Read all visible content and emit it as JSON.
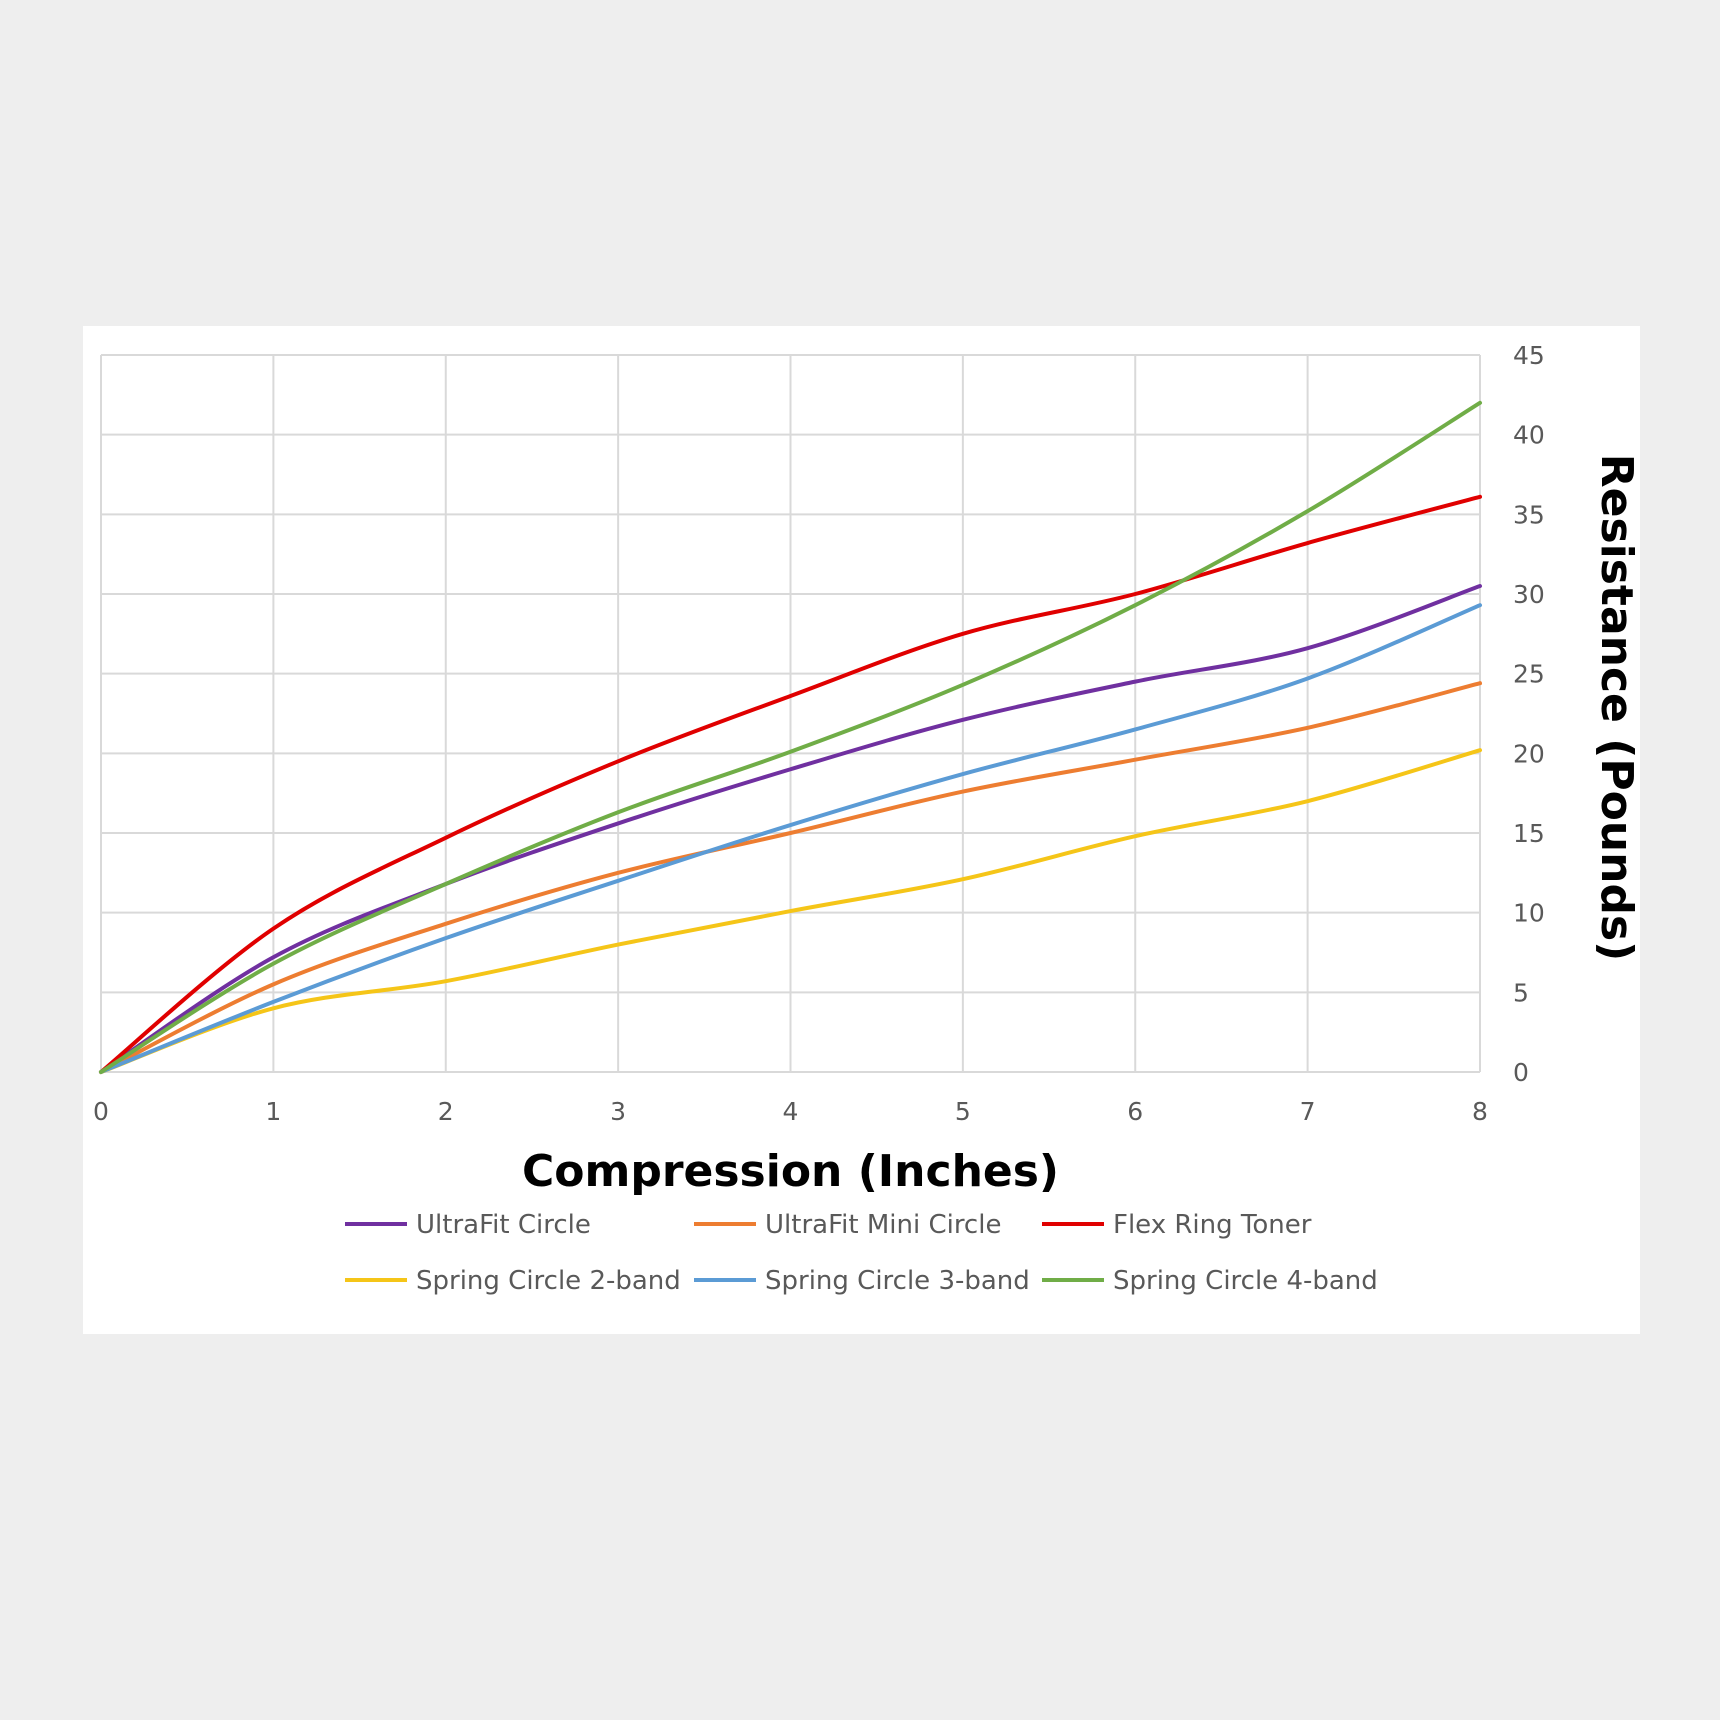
{
  "chart_data": {
    "type": "line",
    "title": "",
    "xlabel": "Compression (Inches)",
    "ylabel": "Resistance (Pounds)",
    "x": [
      0,
      1,
      2,
      3,
      4,
      5,
      6,
      7,
      8
    ],
    "xlim": [
      0,
      8
    ],
    "ylim": [
      0,
      45
    ],
    "x_ticks": [
      "0",
      "1",
      "2",
      "3",
      "4",
      "5",
      "6",
      "7",
      "8"
    ],
    "y_ticks": [
      "0",
      "5",
      "10",
      "15",
      "20",
      "25",
      "30",
      "35",
      "40",
      "45"
    ],
    "y_axis_side": "right",
    "grid": true,
    "legend_position": "bottom",
    "series": [
      {
        "name": "UltraFit Circle",
        "color": "#7030a0",
        "values": [
          0,
          7.2,
          11.8,
          15.6,
          19.0,
          22.1,
          24.5,
          26.6,
          30.5
        ]
      },
      {
        "name": "UltraFit Mini Circle",
        "color": "#ed7d31",
        "values": [
          0,
          5.5,
          9.3,
          12.5,
          15.0,
          17.6,
          19.6,
          21.6,
          24.4
        ]
      },
      {
        "name": "Flex Ring Toner",
        "color": "#e00000",
        "values": [
          0,
          9.0,
          14.7,
          19.5,
          23.6,
          27.5,
          30.0,
          33.2,
          36.1
        ]
      },
      {
        "name": "Spring Circle 2-band",
        "color": "#f5c518",
        "values": [
          0,
          4.0,
          5.7,
          8.0,
          10.1,
          12.1,
          14.8,
          17.0,
          20.2
        ]
      },
      {
        "name": "Spring Circle 3-band",
        "color": "#5b9bd5",
        "values": [
          0,
          4.4,
          8.4,
          12.0,
          15.5,
          18.7,
          21.5,
          24.7,
          29.3
        ]
      },
      {
        "name": "Spring Circle 4-band",
        "color": "#70ad47",
        "values": [
          0,
          6.8,
          11.8,
          16.3,
          20.1,
          24.3,
          29.3,
          35.2,
          42.0
        ]
      }
    ]
  },
  "colors": {
    "page_background": "#eeeeee",
    "plot_background": "#ffffff",
    "gridline": "#d9d9d9",
    "tick_text": "#595959"
  }
}
